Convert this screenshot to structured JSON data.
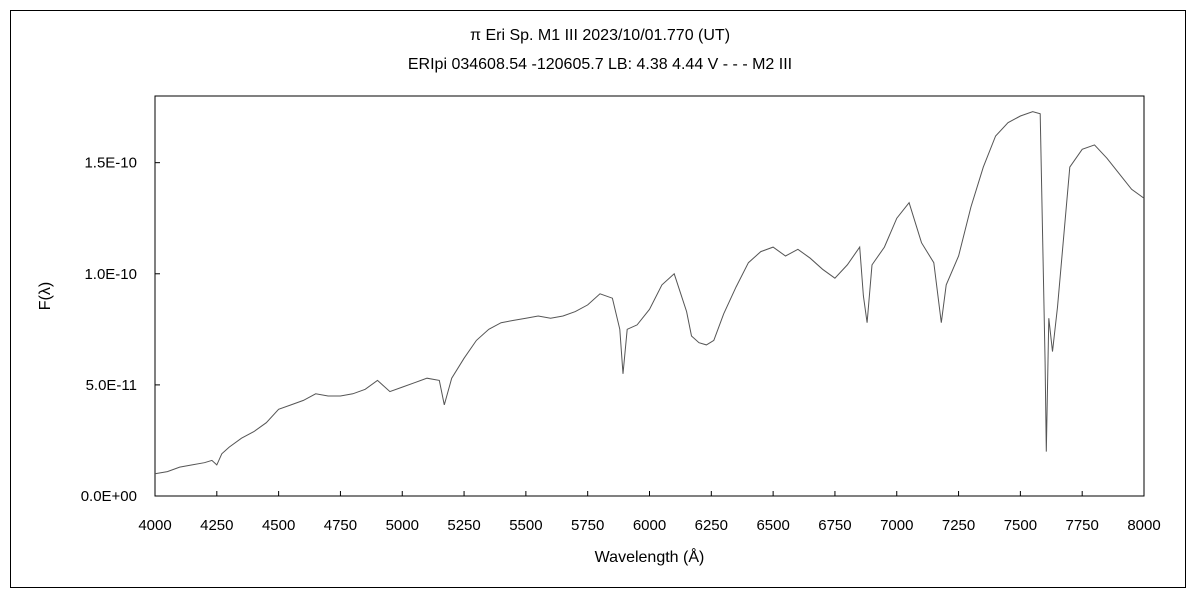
{
  "chart_data": {
    "type": "line",
    "title": "π  Eri    Sp. M1 III    2023/10/01.770 (UT)",
    "subtitle": "ERIpi 034608.54 -120605.7 LB: 4.38 4.44 V - - - M2 III",
    "xlabel": "Wavelength (Å)",
    "ylabel": "F(λ)",
    "xlim": [
      4000,
      8000
    ],
    "ylim": [
      0,
      1.8e-10
    ],
    "x_ticks": [
      4000,
      4250,
      4500,
      4750,
      5000,
      5250,
      5500,
      5750,
      6000,
      6250,
      6500,
      6750,
      7000,
      7250,
      7500,
      7750,
      8000
    ],
    "x_tick_labels": [
      "4000",
      "4250",
      "4500",
      "4750",
      "5000",
      "5250",
      "5500",
      "5750",
      "6000",
      "6250",
      "6500",
      "6750",
      "7000",
      "7250",
      "7500",
      "7750",
      "8000"
    ],
    "y_ticks": [
      0,
      5e-11,
      1e-10,
      1.5e-10
    ],
    "y_tick_labels": [
      "0.0E+00",
      "5.0E-11",
      "1.0E-10",
      "1.5E-10"
    ],
    "grid": false,
    "legend": "none",
    "line_color": "#555555",
    "series": [
      {
        "x": [
          4000,
          4050,
          4100,
          4150,
          4200,
          4230,
          4250,
          4270,
          4300,
          4350,
          4400,
          4450,
          4500,
          4550,
          4600,
          4650,
          4700,
          4750,
          4800,
          4850,
          4900,
          4950,
          5000,
          5050,
          5100,
          5150,
          5170,
          5200,
          5250,
          5300,
          5350,
          5400,
          5450,
          5500,
          5550,
          5600,
          5650,
          5700,
          5750,
          5800,
          5850,
          5880,
          5893,
          5910,
          5950,
          6000,
          6050,
          6100,
          6150,
          6170,
          6200,
          6230,
          6260,
          6300,
          6350,
          6400,
          6450,
          6500,
          6550,
          6600,
          6650,
          6700,
          6750,
          6800,
          6850,
          6865,
          6880,
          6900,
          6950,
          7000,
          7050,
          7100,
          7150,
          7180,
          7200,
          7250,
          7300,
          7350,
          7400,
          7450,
          7500,
          7550,
          7580,
          7600,
          7605,
          7615,
          7630,
          7650,
          7700,
          7750,
          7800,
          7850,
          7900,
          7950,
          8000
        ],
        "y": [
          1e-11,
          1.1e-11,
          1.3e-11,
          1.4e-11,
          1.5e-11,
          1.6e-11,
          1.4e-11,
          1.9e-11,
          2.2e-11,
          2.6e-11,
          2.9e-11,
          3.3e-11,
          3.9e-11,
          4.1e-11,
          4.3e-11,
          4.6e-11,
          4.5e-11,
          4.5e-11,
          4.6e-11,
          4.8e-11,
          5.2e-11,
          4.7e-11,
          4.9e-11,
          5.1e-11,
          5.3e-11,
          5.2e-11,
          4.1e-11,
          5.3e-11,
          6.2e-11,
          7e-11,
          7.5e-11,
          7.8e-11,
          7.9e-11,
          8e-11,
          8.1e-11,
          8e-11,
          8.1e-11,
          8.3e-11,
          8.6e-11,
          9.1e-11,
          8.9e-11,
          7.5e-11,
          5.5e-11,
          7.5e-11,
          7.7e-11,
          8.4e-11,
          9.5e-11,
          1e-10,
          8.3e-11,
          7.2e-11,
          6.9e-11,
          6.8e-11,
          7e-11,
          8.2e-11,
          9.4e-11,
          1.05e-10,
          1.1e-10,
          1.12e-10,
          1.08e-10,
          1.11e-10,
          1.07e-10,
          1.02e-10,
          9.8e-11,
          1.04e-10,
          1.12e-10,
          9e-11,
          7.8e-11,
          1.04e-10,
          1.12e-10,
          1.25e-10,
          1.32e-10,
          1.14e-10,
          1.05e-10,
          7.8e-11,
          9.5e-11,
          1.08e-10,
          1.3e-10,
          1.48e-10,
          1.62e-10,
          1.68e-10,
          1.71e-10,
          1.73e-10,
          1.72e-10,
          6e-11,
          2e-11,
          8e-11,
          6.5e-11,
          8.5e-11,
          1.48e-10,
          1.56e-10,
          1.58e-10,
          1.52e-10,
          1.45e-10,
          1.38e-10,
          1.34e-10
        ]
      }
    ]
  }
}
